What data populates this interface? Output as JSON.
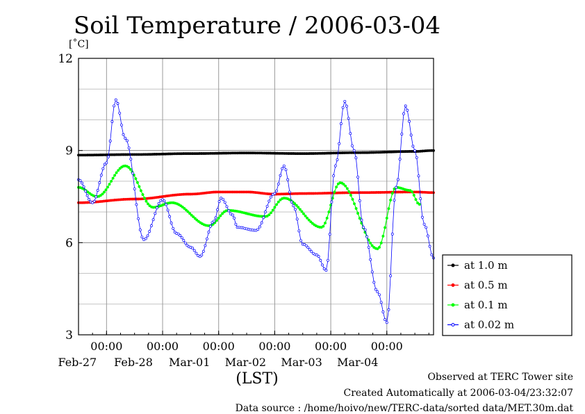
{
  "chart_data": {
    "type": "line",
    "title": "Soil Temperature / 2006-03-04",
    "ylabel": "[˚C]",
    "xlabel": "(LST)",
    "ylim": [
      3,
      12
    ],
    "y_ticks": [
      3,
      6,
      9,
      12
    ],
    "xlim": [
      "2006-02-26T12:00",
      "2006-03-04T20:00"
    ],
    "x_ticks": [
      {
        "time": "2006-02-27T00:00",
        "hour_label": "00:00",
        "date_label": "Feb-27"
      },
      {
        "time": "2006-02-28T00:00",
        "hour_label": "00:00",
        "date_label": "Feb-28"
      },
      {
        "time": "2006-03-01T00:00",
        "hour_label": "00:00",
        "date_label": "Mar-01"
      },
      {
        "time": "2006-03-02T00:00",
        "hour_label": "00:00",
        "date_label": "Mar-02"
      },
      {
        "time": "2006-03-03T00:00",
        "hour_label": "00:00",
        "date_label": "Mar-03"
      },
      {
        "time": "2006-03-04T00:00",
        "hour_label": "00:00",
        "date_label": "Mar-04"
      }
    ],
    "grid": true,
    "legend_position": "right",
    "series": [
      {
        "name": "at 1.0 m",
        "color": "#000000",
        "points": [
          [
            "2006-02-26T12:00",
            8.85
          ],
          [
            "2006-02-27T12:00",
            8.87
          ],
          [
            "2006-02-28T12:00",
            8.9
          ],
          [
            "2006-03-01T12:00",
            8.92
          ],
          [
            "2006-03-02T12:00",
            8.9
          ],
          [
            "2006-03-03T12:00",
            8.93
          ],
          [
            "2006-03-04T12:00",
            8.97
          ],
          [
            "2006-03-04T20:00",
            9.0
          ]
        ]
      },
      {
        "name": "at 0.5 m",
        "color": "#ff0000",
        "points": [
          [
            "2006-02-26T12:00",
            7.3
          ],
          [
            "2006-02-27T12:00",
            7.42
          ],
          [
            "2006-02-28T12:00",
            7.58
          ],
          [
            "2006-03-01T00:00",
            7.65
          ],
          [
            "2006-03-01T12:00",
            7.65
          ],
          [
            "2006-03-02T00:00",
            7.58
          ],
          [
            "2006-03-02T12:00",
            7.6
          ],
          [
            "2006-03-03T12:00",
            7.63
          ],
          [
            "2006-03-04T12:00",
            7.65
          ],
          [
            "2006-03-04T20:00",
            7.63
          ]
        ]
      },
      {
        "name": "at 0.1 m",
        "color": "#00ff00",
        "points": [
          [
            "2006-02-26T12:00",
            7.8
          ],
          [
            "2006-02-26T20:00",
            7.5
          ],
          [
            "2006-02-27T08:00",
            8.5
          ],
          [
            "2006-02-27T20:00",
            7.15
          ],
          [
            "2006-02-28T04:00",
            7.3
          ],
          [
            "2006-02-28T20:00",
            6.55
          ],
          [
            "2006-03-01T04:00",
            7.05
          ],
          [
            "2006-03-01T20:00",
            6.85
          ],
          [
            "2006-03-02T04:00",
            7.45
          ],
          [
            "2006-03-02T20:00",
            6.5
          ],
          [
            "2006-03-03T04:00",
            7.95
          ],
          [
            "2006-03-03T20:00",
            5.8
          ],
          [
            "2006-03-04T04:00",
            7.8
          ],
          [
            "2006-03-04T10:00",
            7.7
          ],
          [
            "2006-03-04T14:00",
            7.25
          ]
        ]
      },
      {
        "name": "at 0.02 m",
        "color": "#0000ff",
        "points": [
          [
            "2006-02-26T12:00",
            8.05
          ],
          [
            "2006-02-26T18:00",
            7.3
          ],
          [
            "2006-02-27T00:00",
            8.6
          ],
          [
            "2006-02-27T04:00",
            10.65
          ],
          [
            "2006-02-27T08:00",
            9.4
          ],
          [
            "2006-02-27T16:00",
            6.1
          ],
          [
            "2006-02-28T00:00",
            7.4
          ],
          [
            "2006-02-28T06:00",
            6.3
          ],
          [
            "2006-02-28T12:00",
            5.85
          ],
          [
            "2006-02-28T16:00",
            5.55
          ],
          [
            "2006-02-28T22:00",
            6.7
          ],
          [
            "2006-03-01T01:00",
            7.45
          ],
          [
            "2006-03-01T06:00",
            6.9
          ],
          [
            "2006-03-01T08:00",
            6.5
          ],
          [
            "2006-03-01T16:00",
            6.4
          ],
          [
            "2006-03-02T00:00",
            7.6
          ],
          [
            "2006-03-02T04:00",
            8.5
          ],
          [
            "2006-03-02T08:00",
            7.2
          ],
          [
            "2006-03-02T12:00",
            5.95
          ],
          [
            "2006-03-02T18:00",
            5.6
          ],
          [
            "2006-03-02T22:00",
            5.1
          ],
          [
            "2006-03-03T02:00",
            8.5
          ],
          [
            "2006-03-03T06:00",
            10.6
          ],
          [
            "2006-03-03T10:00",
            9.0
          ],
          [
            "2006-03-03T14:00",
            6.5
          ],
          [
            "2006-03-03T20:00",
            4.4
          ],
          [
            "2006-03-04T00:00",
            3.4
          ],
          [
            "2006-03-04T04:00",
            7.8
          ],
          [
            "2006-03-04T08:00",
            10.45
          ],
          [
            "2006-03-04T12:00",
            9.0
          ],
          [
            "2006-03-04T16:00",
            6.6
          ],
          [
            "2006-03-04T20:00",
            5.5
          ]
        ]
      }
    ]
  },
  "footer": {
    "line1": "Observed at TERC Tower site",
    "line2": "Created Automatically at 2006-03-04/23:32:07",
    "line3": "Data source : /home/hoivo/new/TERC-data/sorted  data/MET.30m.dat"
  }
}
